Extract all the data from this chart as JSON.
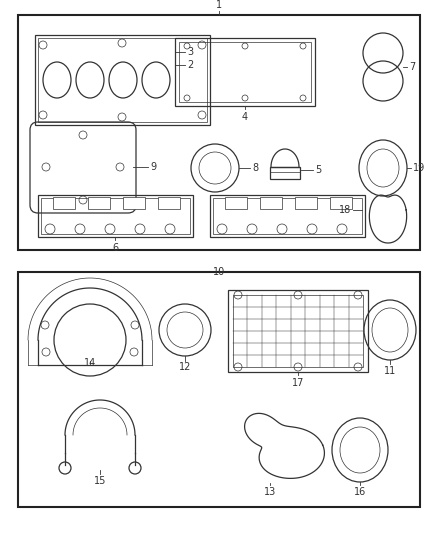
{
  "background_color": "#ffffff",
  "line_color": "#333333",
  "label_fontsize": 7,
  "lw_main": 1.2,
  "lw_part": 0.9,
  "lw_thin": 0.5
}
